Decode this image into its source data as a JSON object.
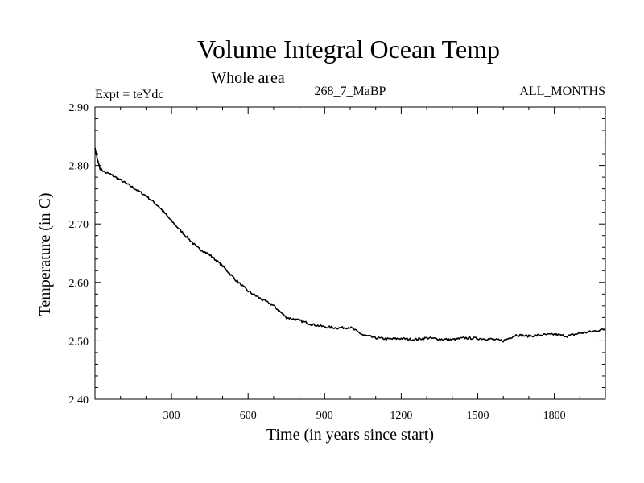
{
  "chart_data": {
    "type": "line",
    "title": "Volume Integral Ocean Temp",
    "subtitle": "Whole area",
    "info_left": "Expt = teYdc",
    "info_center": "268_7_MaBP",
    "info_right": "ALL_MONTHS",
    "xlabel": "Time (in years since start)",
    "ylabel": "Temperature (in C)",
    "xlim": [
      0,
      2000
    ],
    "ylim": [
      2.4,
      2.9
    ],
    "xticks": [
      300,
      600,
      900,
      1200,
      1500,
      1800
    ],
    "xtick_labels": [
      "300",
      "600",
      "900",
      "1200",
      "1500",
      "1800"
    ],
    "yticks": [
      2.4,
      2.5,
      2.6,
      2.7,
      2.8,
      2.9
    ],
    "ytick_labels": [
      "2.40",
      "2.50",
      "2.60",
      "2.70",
      "2.80",
      "2.90"
    ],
    "grid": false,
    "series": [
      {
        "name": "Volume integral ocean temperature",
        "x": [
          0,
          10,
          20,
          40,
          60,
          100,
          150,
          200,
          250,
          300,
          350,
          400,
          450,
          500,
          550,
          600,
          650,
          700,
          750,
          800,
          850,
          900,
          950,
          1000,
          1050,
          1100,
          1150,
          1200,
          1250,
          1300,
          1350,
          1400,
          1450,
          1500,
          1550,
          1600,
          1650,
          1700,
          1750,
          1800,
          1850,
          1900,
          1950,
          2000
        ],
        "values": [
          2.83,
          2.81,
          2.795,
          2.788,
          2.785,
          2.775,
          2.762,
          2.748,
          2.73,
          2.705,
          2.682,
          2.66,
          2.647,
          2.628,
          2.605,
          2.585,
          2.572,
          2.56,
          2.54,
          2.535,
          2.528,
          2.524,
          2.522,
          2.523,
          2.51,
          2.505,
          2.503,
          2.504,
          2.502,
          2.505,
          2.503,
          2.502,
          2.505,
          2.504,
          2.503,
          2.5,
          2.51,
          2.508,
          2.51,
          2.511,
          2.508,
          2.513,
          2.516,
          2.52
        ]
      }
    ]
  }
}
